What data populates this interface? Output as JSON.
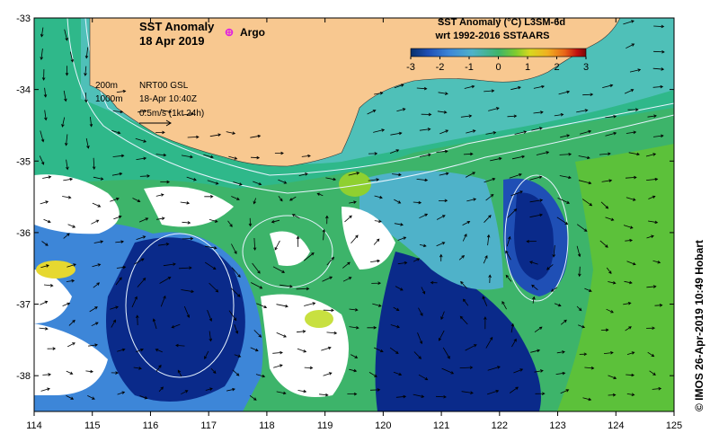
{
  "title": {
    "line1": "SST Anomaly",
    "line2": "18 Apr 2019"
  },
  "argo_label": "Argo",
  "colorbar": {
    "title_line1": "SST Anomaly (°C) L3SM-6d",
    "title_line2": "wrt 1992-2016 SSTAARS",
    "ticks": [
      "-3",
      "-2",
      "-1",
      "0",
      "1",
      "2",
      "3"
    ],
    "colors": [
      "#08306b",
      "#1f4fb5",
      "#3d86d8",
      "#4fb2c9",
      "#3db46a",
      "#7fcc2e",
      "#d8d820",
      "#f0b020",
      "#e86418",
      "#c01010",
      "#7a0808"
    ]
  },
  "legend": {
    "contour_200": "200m",
    "contour_1000": "1000m",
    "product": "NRT00 GSL",
    "time": "18-Apr 10:40Z",
    "scale": "0.5m/s (1kt 24h)"
  },
  "axes": {
    "x_ticks": [
      "114",
      "115",
      "116",
      "117",
      "118",
      "119",
      "120",
      "121",
      "122",
      "123",
      "124",
      "125"
    ],
    "y_ticks": [
      "-33",
      "-34",
      "-35",
      "-36",
      "-37",
      "-38"
    ],
    "xlim": [
      114,
      125
    ],
    "ylim": [
      -38.5,
      -33
    ]
  },
  "credit": "© IMOS 26-Apr-2019 10:49 Hobart",
  "colors": {
    "land": "#f8c890",
    "missing": "#ffffff",
    "warm_patch": "#e6d830"
  }
}
